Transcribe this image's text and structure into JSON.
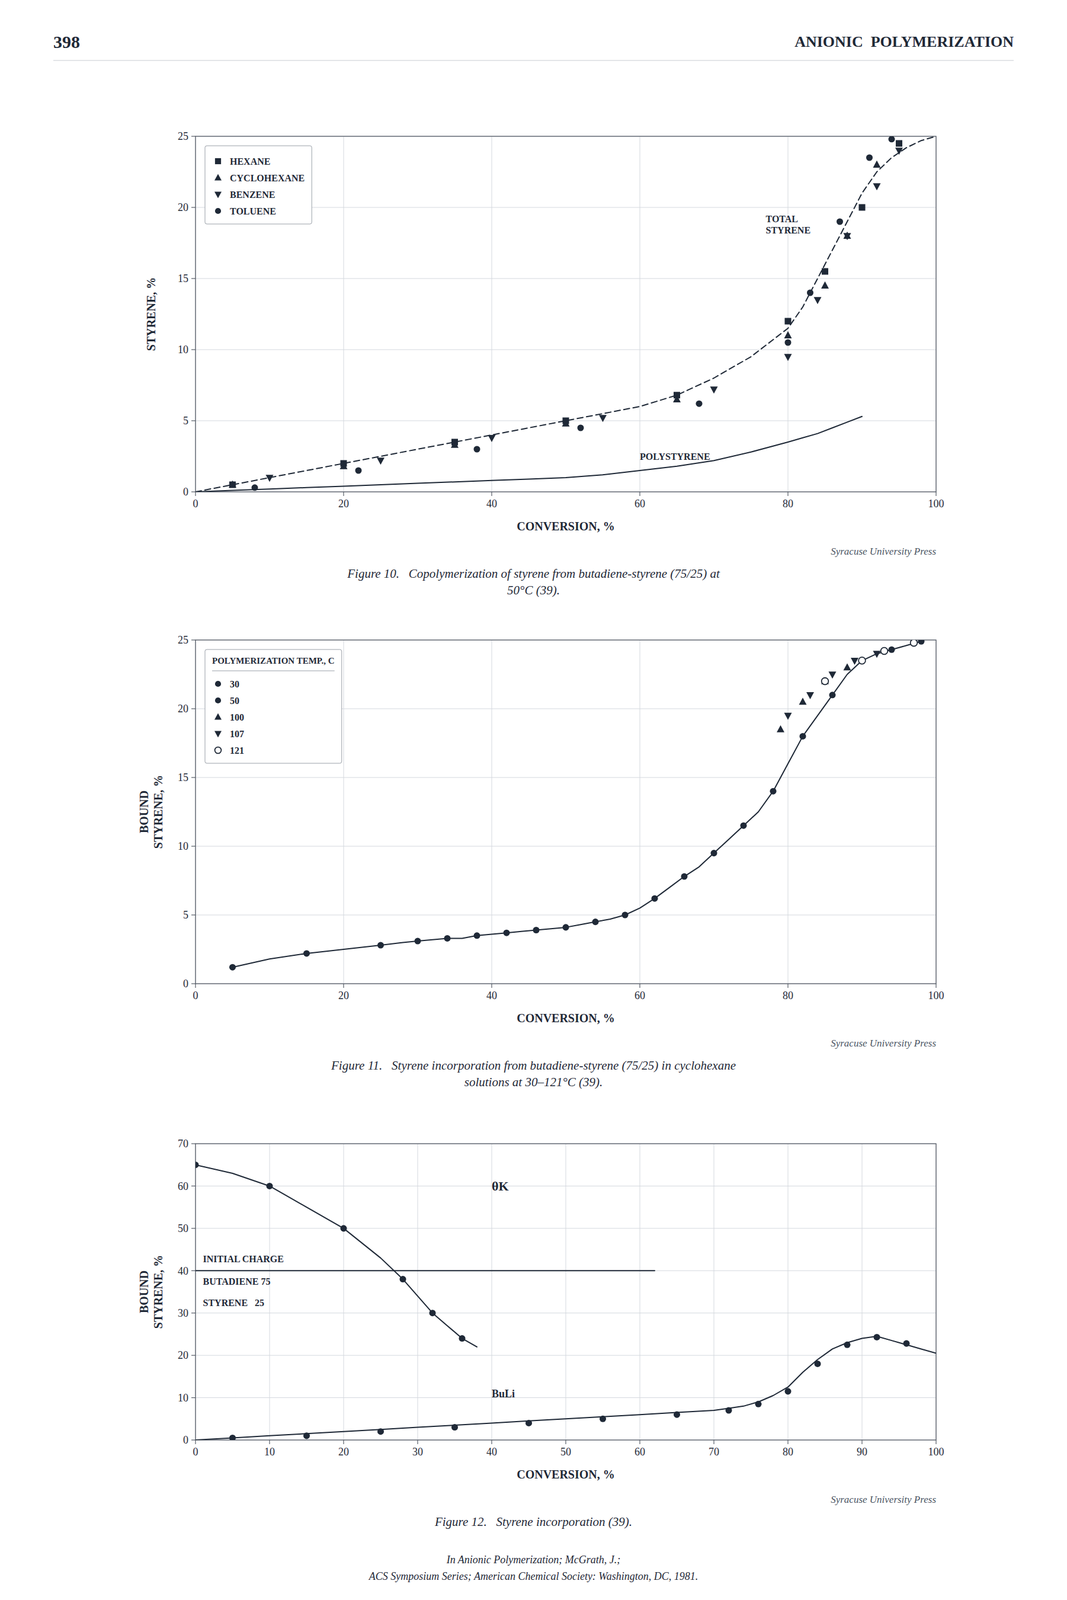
{
  "page_number": "398",
  "page_title": "ANIONIC  POLYMERIZATION",
  "footer": [
    "In Anionic Polymerization; McGrath, J.;",
    "ACS Symposium Series; American Chemical Society: Washington, DC, 1981."
  ],
  "chart_data": [
    {
      "type": "line",
      "caption": [
        "Figure 10.   Copolymerization of styrene from butadiene-styrene (75/25) at",
        "50°C (39)."
      ],
      "source": "Syracuse University Press",
      "xlabel": "CONVERSION, %",
      "ylabel": "STYRENE, %",
      "xlim": [
        0,
        100
      ],
      "ylim": [
        0,
        25
      ],
      "xticks": [
        0,
        20,
        40,
        60,
        80,
        100
      ],
      "yticks": [
        0,
        5,
        10,
        15,
        20,
        25
      ],
      "grid": true,
      "legend": "upper left",
      "series": [
        {
          "type": "line",
          "line_style": "dashed",
          "marker": "none",
          "x": [
            0,
            5,
            10,
            15,
            20,
            25,
            30,
            35,
            40,
            45,
            50,
            55,
            60,
            65,
            70,
            75,
            80,
            82,
            84,
            86,
            88,
            90,
            92,
            94,
            96,
            98,
            100
          ],
          "values": [
            0,
            0.5,
            1.0,
            1.5,
            2.0,
            2.5,
            3.0,
            3.5,
            4.0,
            4.5,
            5.0,
            5.5,
            6.0,
            6.8,
            8.0,
            9.5,
            11.5,
            13,
            15,
            17,
            19,
            21,
            22.5,
            23.5,
            24.2,
            24.7,
            25.0
          ]
        },
        {
          "type": "line",
          "line_style": "solid",
          "marker": "none",
          "x": [
            0,
            5,
            10,
            15,
            20,
            25,
            30,
            35,
            40,
            45,
            50,
            55,
            60,
            65,
            70,
            75,
            80,
            82,
            84,
            86,
            88,
            90
          ],
          "values": [
            0,
            0.1,
            0.2,
            0.3,
            0.4,
            0.5,
            0.6,
            0.7,
            0.8,
            0.9,
            1.0,
            1.2,
            1.5,
            1.8,
            2.2,
            2.8,
            3.5,
            3.8,
            4.1,
            4.5,
            4.9,
            5.3
          ]
        },
        {
          "name": "HEXANE",
          "type": "scatter",
          "marker": "square",
          "x": [
            5,
            20,
            35,
            50,
            65,
            80,
            85,
            90,
            95
          ],
          "values": [
            0.5,
            2.0,
            3.5,
            5.0,
            6.8,
            12.0,
            15.5,
            20.0,
            24.5
          ]
        },
        {
          "name": "CYCLOHEXANE",
          "type": "scatter",
          "marker": "triangle-up",
          "x": [
            5,
            20,
            35,
            50,
            65,
            80,
            85,
            88,
            92
          ],
          "values": [
            0.5,
            1.8,
            3.3,
            4.8,
            6.5,
            11.0,
            14.5,
            18.0,
            23.0
          ]
        },
        {
          "name": "BENZENE",
          "type": "scatter",
          "marker": "triangle-down",
          "x": [
            10,
            25,
            40,
            55,
            70,
            80,
            84,
            88,
            92,
            95
          ],
          "values": [
            1.0,
            2.2,
            3.8,
            5.2,
            7.2,
            9.5,
            13.5,
            18.0,
            21.5,
            24.0
          ]
        },
        {
          "name": "TOLUENE",
          "type": "scatter",
          "marker": "circle",
          "x": [
            8,
            22,
            38,
            52,
            68,
            80,
            83,
            87,
            91,
            94
          ],
          "values": [
            0.3,
            1.5,
            3.0,
            4.5,
            6.2,
            10.5,
            14.0,
            19.0,
            23.5,
            24.8
          ]
        }
      ],
      "annotations": [
        {
          "text": "TOTAL\nSTYRENE",
          "x": 77,
          "y": 19.5
        },
        {
          "text": "POLYSTYRENE",
          "x": 60,
          "y": 2.5
        }
      ]
    },
    {
      "type": "line",
      "caption": [
        "Figure 11.   Styrene incorporation from butadiene-styrene (75/25) in cyclohexane",
        "solutions at 30–121°C (39)."
      ],
      "source": "Syracuse University Press",
      "xlabel": "CONVERSION, %",
      "ylabel": "BOUND\nSTYRENE, %",
      "xlim": [
        0,
        100
      ],
      "ylim": [
        0,
        25
      ],
      "xticks": [
        0,
        20,
        40,
        60,
        80,
        100
      ],
      "yticks": [
        0,
        5,
        10,
        15,
        20,
        25
      ],
      "grid": true,
      "legend": "upper left",
      "legend_title": "POLYMERIZATION TEMP., C",
      "legend_entries": [
        {
          "name": "30",
          "marker": "circle"
        },
        {
          "name": "50",
          "marker": "circle"
        },
        {
          "name": "100",
          "marker": "triangle-up"
        },
        {
          "name": "107",
          "marker": "triangle-down"
        },
        {
          "name": "121",
          "marker": "circle-open"
        }
      ],
      "series": [
        {
          "type": "line",
          "line_style": "solid",
          "marker": "none",
          "x": [
            5,
            10,
            15,
            20,
            25,
            28,
            30,
            32,
            34,
            36,
            38,
            40,
            42,
            44,
            46,
            48,
            50,
            52,
            54,
            56,
            58,
            60,
            62,
            64,
            66,
            68,
            70,
            72,
            74,
            76,
            78,
            80,
            82,
            84,
            86,
            88,
            90,
            92,
            94,
            96,
            98
          ],
          "values": [
            1.2,
            1.8,
            2.2,
            2.5,
            2.8,
            3.0,
            3.1,
            3.2,
            3.3,
            3.3,
            3.5,
            3.6,
            3.7,
            3.8,
            3.9,
            4.0,
            4.1,
            4.3,
            4.5,
            4.7,
            5.0,
            5.5,
            6.2,
            7.0,
            7.8,
            8.5,
            9.5,
            10.5,
            11.5,
            12.5,
            14.0,
            16.0,
            18.0,
            19.5,
            21.0,
            22.5,
            23.5,
            24.0,
            24.3,
            24.6,
            24.9
          ]
        },
        {
          "type": "scatter",
          "marker": "circle",
          "x": [
            5,
            15,
            25,
            30,
            34,
            38,
            42,
            46,
            50,
            54,
            58,
            62,
            66,
            70,
            74,
            78,
            82,
            86,
            90,
            94,
            98
          ],
          "values": [
            1.2,
            2.2,
            2.8,
            3.1,
            3.3,
            3.5,
            3.7,
            3.9,
            4.1,
            4.5,
            5.0,
            6.2,
            7.8,
            9.5,
            11.5,
            14.0,
            18.0,
            21.0,
            23.5,
            24.3,
            24.9
          ]
        },
        {
          "type": "scatter",
          "marker": "triangle-down",
          "x": [
            80,
            83,
            86,
            89,
            92
          ],
          "values": [
            19.5,
            21.0,
            22.5,
            23.5,
            24.0
          ]
        },
        {
          "type": "scatter",
          "marker": "triangle-up",
          "x": [
            79,
            82,
            85,
            88
          ],
          "values": [
            18.5,
            20.5,
            22.0,
            23.0
          ]
        },
        {
          "type": "scatter",
          "marker": "circle-open",
          "x": [
            85,
            90,
            93,
            97
          ],
          "values": [
            22.0,
            23.5,
            24.2,
            24.8
          ]
        }
      ]
    },
    {
      "type": "line",
      "caption": [
        "Figure 12.   Styrene incorporation (39)."
      ],
      "source": "Syracuse University Press",
      "xlabel": "CONVERSION, %",
      "ylabel": "BOUND\nSTYRENE, %",
      "xlim": [
        0,
        100
      ],
      "ylim": [
        0,
        70
      ],
      "xticks": [
        0,
        10,
        20,
        30,
        40,
        50,
        60,
        70,
        80,
        90,
        100
      ],
      "yticks": [
        0,
        10,
        20,
        30,
        40,
        50,
        60,
        70
      ],
      "grid": true,
      "series": [
        {
          "type": "line",
          "line_style": "solid",
          "marker": "none",
          "x": [
            0,
            62
          ],
          "values": [
            40,
            40
          ]
        },
        {
          "type": "line",
          "line_style": "solid",
          "marker": "none",
          "x": [
            0,
            5,
            10,
            15,
            20,
            25,
            30,
            35,
            40,
            45,
            50,
            55,
            60,
            65,
            70,
            72,
            74,
            76,
            78,
            80,
            82,
            84,
            86,
            88,
            90,
            92,
            94,
            96,
            98,
            100
          ],
          "values": [
            0,
            0.5,
            1.0,
            1.5,
            2.0,
            2.5,
            3.0,
            3.5,
            4.0,
            4.5,
            5.0,
            5.5,
            6.0,
            6.5,
            7.0,
            7.5,
            8.0,
            9.0,
            10.5,
            12.5,
            16.0,
            19.0,
            21.5,
            23.0,
            24.0,
            24.5,
            23.5,
            22.5,
            21.5,
            20.5
          ]
        },
        {
          "type": "scatter",
          "marker": "circle",
          "x": [
            5,
            15,
            25,
            35,
            45,
            55,
            65,
            72,
            76,
            80,
            84,
            88,
            92,
            96
          ],
          "values": [
            0.5,
            1.0,
            2.0,
            3.0,
            4.0,
            5.0,
            6.0,
            7.0,
            8.5,
            11.5,
            18.0,
            22.5,
            24.3,
            22.8
          ]
        },
        {
          "type": "line",
          "line_style": "solid",
          "marker": "none",
          "x": [
            0,
            5,
            10,
            15,
            20,
            25,
            28,
            30,
            32,
            34,
            36,
            38
          ],
          "values": [
            65,
            63,
            60,
            55,
            50,
            43,
            38,
            34,
            30,
            27,
            24,
            22
          ]
        },
        {
          "type": "scatter",
          "marker": "circle",
          "x": [
            0,
            10,
            20,
            28,
            32,
            36
          ],
          "values": [
            65,
            60,
            50,
            38,
            30,
            24
          ]
        }
      ],
      "annotations": [
        {
          "text": "INITIAL CHARGE",
          "x": 1,
          "y": 41.5
        },
        {
          "text": "BUTADIENE 75",
          "x": 1,
          "y": 38.5
        },
        {
          "text": "STYRENE   25",
          "x": 1,
          "y": 33.5
        },
        {
          "text": "BuLi",
          "x": 40,
          "y": 11
        },
        {
          "text": "θK",
          "x": 40,
          "y": 60
        }
      ]
    }
  ]
}
